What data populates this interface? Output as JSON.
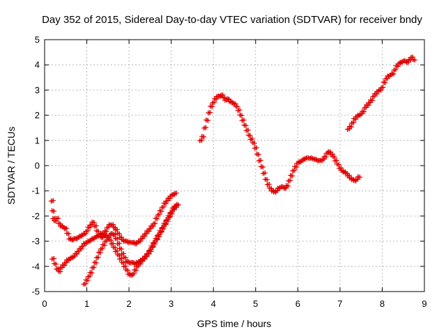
{
  "chart_data": {
    "type": "scatter",
    "title": "Day 352 of 2015, Sidereal Day-to-day VTEC variation (SDTVAR) for receiver bndy",
    "xlabel": "GPS time / hours",
    "ylabel": "SDTVAR / TECUs",
    "xlim": [
      0,
      9
    ],
    "ylim": [
      -5,
      5
    ],
    "xticks": [
      "0",
      "1",
      "2",
      "3",
      "4",
      "5",
      "6",
      "7",
      "8",
      "9"
    ],
    "yticks": [
      "-5",
      "-4",
      "-3",
      "-2",
      "-1",
      "0",
      "1",
      "2",
      "3",
      "4",
      "5"
    ],
    "grid": true,
    "marker": "plus",
    "color": "#e00000",
    "series": [
      {
        "x": [
          0.18,
          0.2,
          0.22,
          0.25,
          0.3,
          0.35,
          0.4,
          0.45,
          0.5,
          0.55,
          0.6,
          0.65,
          0.7,
          0.75,
          0.8,
          0.85,
          0.9,
          0.95,
          1.0,
          1.05,
          1.1,
          1.15,
          1.2,
          1.25,
          1.3,
          1.35,
          1.4,
          1.45,
          1.5,
          1.55,
          1.6,
          1.65,
          1.7,
          1.75,
          1.8,
          1.85,
          1.9,
          1.95,
          2.0,
          2.05,
          2.1,
          2.15,
          2.2,
          2.25,
          2.3,
          2.35,
          2.4,
          2.45,
          2.5,
          2.55,
          2.6,
          2.65,
          2.7,
          2.75,
          2.8,
          2.85,
          2.9,
          2.95,
          3.0,
          3.05,
          3.1
        ],
        "y": [
          -1.4,
          -1.8,
          -2.1,
          -2.2,
          -2.1,
          -2.3,
          -2.4,
          -2.45,
          -2.5,
          -2.7,
          -2.9,
          -2.95,
          -2.9,
          -2.9,
          -2.85,
          -2.8,
          -2.75,
          -2.7,
          -2.6,
          -2.45,
          -2.35,
          -2.25,
          -2.4,
          -2.6,
          -2.75,
          -2.85,
          -2.8,
          -2.6,
          -2.45,
          -2.35,
          -2.35,
          -2.45,
          -2.55,
          -2.7,
          -2.85,
          -2.95,
          -3.0,
          -3.0,
          -3.05,
          -3.05,
          -3.05,
          -3.1,
          -3.05,
          -3.0,
          -2.9,
          -2.8,
          -2.7,
          -2.6,
          -2.5,
          -2.4,
          -2.3,
          -2.1,
          -1.95,
          -1.8,
          -1.65,
          -1.5,
          -1.4,
          -1.3,
          -1.2,
          -1.15,
          -1.1
        ]
      },
      {
        "x": [
          0.2,
          0.25,
          0.3,
          0.35,
          0.4,
          0.45,
          0.5,
          0.55,
          0.6,
          0.65,
          0.7,
          0.75,
          0.8,
          0.85,
          0.9,
          0.95,
          1.0,
          1.05,
          1.1,
          1.15,
          1.2,
          1.25,
          1.3,
          1.35,
          1.4,
          1.45,
          1.5,
          1.55,
          1.6,
          1.65,
          1.7,
          1.75,
          1.8,
          1.85,
          1.9,
          1.95,
          2.0,
          2.05,
          2.1,
          2.15,
          2.2,
          2.25,
          2.3,
          2.35,
          2.4,
          2.45,
          2.5,
          2.55,
          2.6,
          2.65,
          2.7,
          2.75,
          2.8,
          2.85,
          2.9,
          2.95,
          3.0,
          3.05,
          3.1,
          3.15
        ],
        "y": [
          -3.7,
          -3.9,
          -4.1,
          -4.2,
          -4.05,
          -3.95,
          -3.85,
          -3.75,
          -3.7,
          -3.65,
          -3.6,
          -3.5,
          -3.4,
          -3.3,
          -3.2,
          -3.1,
          -3.05,
          -3.0,
          -2.95,
          -2.9,
          -2.85,
          -2.8,
          -2.75,
          -2.7,
          -2.7,
          -2.75,
          -2.85,
          -2.95,
          -3.1,
          -3.25,
          -3.4,
          -3.55,
          -3.7,
          -3.85,
          -4.0,
          -4.15,
          -4.3,
          -4.35,
          -4.3,
          -4.15,
          -4.0,
          -3.9,
          -3.8,
          -3.7,
          -3.6,
          -3.5,
          -3.35,
          -3.2,
          -3.05,
          -2.9,
          -2.75,
          -2.6,
          -2.45,
          -2.3,
          -2.15,
          -2.0,
          -1.85,
          -1.7,
          -1.6,
          -1.55
        ]
      },
      {
        "x": [
          0.95,
          1.0,
          1.05,
          1.1,
          1.15,
          1.2,
          1.25,
          1.3,
          1.35,
          1.4,
          1.45,
          1.5,
          1.55,
          1.6,
          1.65,
          1.7,
          1.75,
          1.8,
          1.85,
          1.9,
          1.95,
          2.0,
          2.05,
          2.1,
          2.15,
          2.2,
          2.25,
          2.3,
          2.35,
          2.4,
          2.45,
          2.5,
          2.55,
          2.6,
          2.65,
          2.7,
          2.75,
          2.8,
          2.85,
          2.9,
          2.95,
          3.0,
          3.05,
          3.1
        ],
        "y": [
          -4.7,
          -4.55,
          -4.4,
          -4.25,
          -4.05,
          -3.85,
          -3.65,
          -3.45,
          -3.3,
          -3.15,
          -3.0,
          -2.85,
          -2.75,
          -2.7,
          -2.75,
          -2.9,
          -3.1,
          -3.3,
          -3.5,
          -3.65,
          -3.8,
          -3.85,
          -3.85,
          -3.85,
          -3.9,
          -3.85,
          -3.8,
          -3.75,
          -3.7,
          -3.6,
          -3.5,
          -3.4,
          -3.25,
          -3.1,
          -2.95,
          -2.8,
          -2.65,
          -2.5,
          -2.35,
          -2.2,
          -2.05,
          -1.9,
          -1.75,
          -1.65
        ]
      },
      {
        "x": [
          3.7,
          3.75,
          3.8,
          3.85,
          3.9,
          3.95,
          4.0,
          4.05,
          4.1,
          4.15,
          4.2,
          4.25,
          4.3,
          4.35,
          4.4,
          4.45,
          4.5,
          4.55,
          4.6,
          4.65,
          4.7,
          4.75,
          4.8,
          4.85,
          4.9,
          4.95,
          5.0,
          5.05,
          5.1,
          5.15,
          5.2,
          5.25,
          5.3,
          5.35,
          5.4,
          5.45,
          5.5,
          5.55,
          5.6,
          5.65,
          5.7,
          5.75,
          5.8,
          5.85,
          5.9,
          5.95,
          6.0,
          6.05,
          6.1,
          6.15,
          6.2,
          6.25,
          6.3,
          6.35,
          6.4,
          6.45,
          6.5,
          6.55,
          6.6,
          6.65,
          6.7,
          6.75,
          6.8,
          6.85,
          6.9,
          6.95,
          7.0,
          7.05,
          7.1,
          7.15,
          7.2,
          7.25,
          7.3,
          7.35,
          7.4,
          7.45
        ],
        "y": [
          1.0,
          1.15,
          1.5,
          1.8,
          2.1,
          2.35,
          2.5,
          2.65,
          2.75,
          2.75,
          2.8,
          2.7,
          2.6,
          2.65,
          2.55,
          2.5,
          2.45,
          2.35,
          2.2,
          2.0,
          1.8,
          1.6,
          1.4,
          1.2,
          1.05,
          0.9,
          0.7,
          0.45,
          0.2,
          -0.05,
          -0.3,
          -0.55,
          -0.75,
          -0.9,
          -1.0,
          -1.05,
          -1.0,
          -0.9,
          -0.85,
          -0.85,
          -0.9,
          -0.8,
          -0.6,
          -0.4,
          -0.2,
          -0.05,
          0.1,
          0.15,
          0.2,
          0.25,
          0.3,
          0.3,
          0.3,
          0.28,
          0.25,
          0.22,
          0.2,
          0.2,
          0.25,
          0.35,
          0.5,
          0.55,
          0.45,
          0.35,
          0.2,
          0.05,
          -0.1,
          -0.2,
          -0.25,
          -0.3,
          -0.4,
          -0.5,
          -0.55,
          -0.6,
          -0.55,
          -0.45
        ]
      },
      {
        "x": [
          7.2,
          7.25,
          7.3,
          7.35,
          7.4,
          7.45,
          7.5,
          7.55,
          7.6,
          7.65,
          7.7,
          7.75,
          7.8,
          7.85,
          7.9,
          7.95,
          8.0,
          8.05,
          8.1,
          8.15,
          8.2,
          8.25,
          8.3,
          8.35,
          8.4,
          8.45,
          8.5,
          8.55,
          8.6,
          8.65,
          8.7,
          8.75
        ],
        "y": [
          1.45,
          1.55,
          1.7,
          1.85,
          1.95,
          2.0,
          2.05,
          2.15,
          2.3,
          2.4,
          2.5,
          2.6,
          2.75,
          2.85,
          2.95,
          3.0,
          3.1,
          3.3,
          3.45,
          3.55,
          3.6,
          3.65,
          3.8,
          3.95,
          4.05,
          4.1,
          4.15,
          4.15,
          4.1,
          4.2,
          4.3,
          4.2
        ]
      }
    ]
  }
}
